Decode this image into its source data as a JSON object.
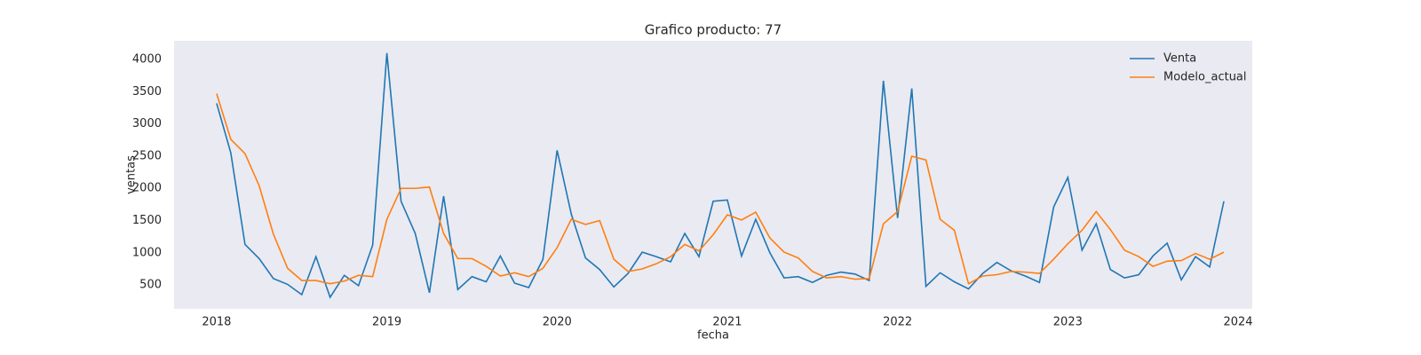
{
  "chart_data": {
    "type": "line",
    "title": "Grafico producto: 77",
    "x_label": "fecha",
    "y_label": "ventas",
    "x": [
      "2018-01",
      "2018-02",
      "2018-03",
      "2018-04",
      "2018-05",
      "2018-06",
      "2018-07",
      "2018-08",
      "2018-09",
      "2018-10",
      "2018-11",
      "2018-12",
      "2019-01",
      "2019-02",
      "2019-03",
      "2019-04",
      "2019-05",
      "2019-06",
      "2019-07",
      "2019-08",
      "2019-09",
      "2019-10",
      "2019-11",
      "2019-12",
      "2020-01",
      "2020-02",
      "2020-03",
      "2020-04",
      "2020-05",
      "2020-06",
      "2020-07",
      "2020-08",
      "2020-09",
      "2020-10",
      "2020-11",
      "2020-12",
      "2021-01",
      "2021-02",
      "2021-03",
      "2021-04",
      "2021-05",
      "2021-06",
      "2021-07",
      "2021-08",
      "2021-09",
      "2021-10",
      "2021-11",
      "2021-12",
      "2022-01",
      "2022-02",
      "2022-03",
      "2022-04",
      "2022-05",
      "2022-06",
      "2022-07",
      "2022-08",
      "2022-09",
      "2022-10",
      "2022-11",
      "2022-12",
      "2023-01",
      "2023-02",
      "2023-03",
      "2023-04",
      "2023-05",
      "2023-06",
      "2023-07",
      "2023-08",
      "2023-09",
      "2023-10",
      "2023-11",
      "2023-12"
    ],
    "series": [
      {
        "name": "Venta",
        "color": "#1f77b4",
        "values": [
          3320,
          2550,
          1130,
          910,
          600,
          510,
          350,
          940,
          310,
          650,
          490,
          1120,
          4100,
          1800,
          1300,
          380,
          1880,
          430,
          630,
          550,
          950,
          530,
          460,
          900,
          2590,
          1600,
          920,
          740,
          470,
          680,
          1010,
          940,
          860,
          1300,
          940,
          1800,
          1820,
          950,
          1520,
          1000,
          610,
          630,
          540,
          650,
          700,
          670,
          570,
          3670,
          1540,
          3550,
          480,
          690,
          550,
          440,
          680,
          850,
          720,
          640,
          540,
          1710,
          2170,
          1040,
          1450,
          740,
          610,
          660,
          950,
          1150,
          580,
          940,
          780,
          1800
        ]
      },
      {
        "name": "Modelo_actual",
        "color": "#ff7f0e",
        "values": [
          3470,
          2760,
          2540,
          2040,
          1290,
          760,
          570,
          570,
          520,
          560,
          650,
          630,
          1520,
          2000,
          2000,
          2020,
          1300,
          910,
          910,
          790,
          640,
          690,
          630,
          760,
          1080,
          1520,
          1440,
          1500,
          900,
          710,
          750,
          830,
          940,
          1130,
          1030,
          1280,
          1590,
          1510,
          1630,
          1230,
          1010,
          920,
          710,
          610,
          630,
          590,
          600,
          1450,
          1640,
          2500,
          2440,
          1520,
          1350,
          520,
          640,
          660,
          710,
          700,
          680,
          900,
          1140,
          1350,
          1640,
          1360,
          1040,
          940,
          790,
          870,
          880,
          990,
          900,
          1010
        ]
      }
    ],
    "xlim": [
      "2017-10",
      "2024-02"
    ],
    "xticks": [
      {
        "value": "2018-01",
        "label": "2018"
      },
      {
        "value": "2019-01",
        "label": "2019"
      },
      {
        "value": "2020-01",
        "label": "2020"
      },
      {
        "value": "2021-01",
        "label": "2021"
      },
      {
        "value": "2022-01",
        "label": "2022"
      },
      {
        "value": "2023-01",
        "label": "2023"
      },
      {
        "value": "2024-01",
        "label": "2024"
      }
    ],
    "ylim": [
      130,
      4290
    ],
    "yticks": [
      500,
      1000,
      1500,
      2000,
      2500,
      3000,
      3500,
      4000
    ],
    "grid": false,
    "legend": "upper right",
    "background": "#eaeaf2"
  }
}
